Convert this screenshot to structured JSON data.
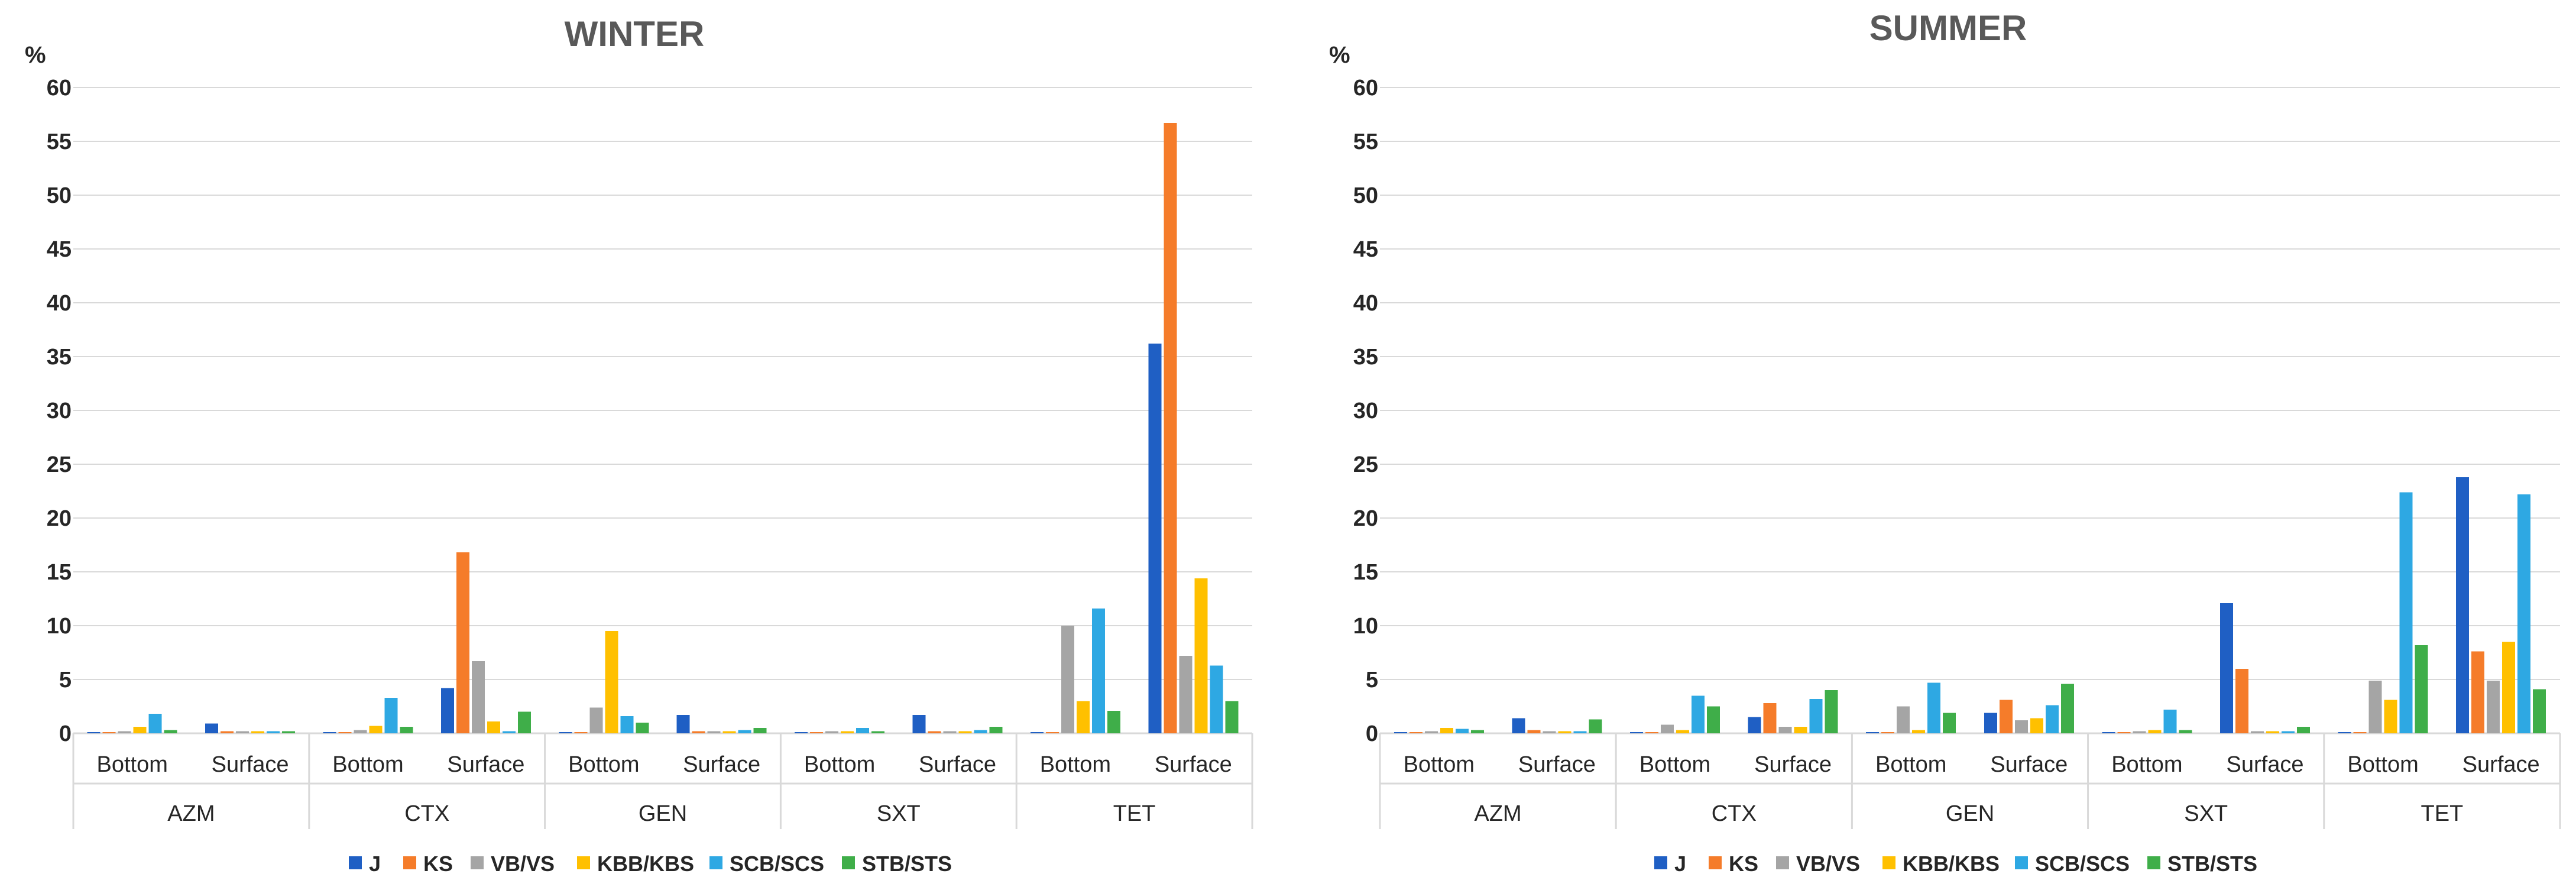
{
  "chart_data": [
    {
      "type": "bar",
      "title": "WINTER",
      "ylabel": "%",
      "ylim": [
        0,
        60
      ],
      "yticks": [
        "0",
        "5",
        "10",
        "15",
        "20",
        "25",
        "30",
        "35",
        "40",
        "45",
        "50",
        "55",
        "60"
      ],
      "groups": [
        "AZM",
        "CTX",
        "GEN",
        "SXT",
        "TET"
      ],
      "subcategories": [
        "Bottom",
        "Surface"
      ],
      "series": [
        {
          "name": "J",
          "color": "#1f5fc4",
          "values": [
            0.1,
            0.9,
            0.1,
            4.2,
            0.1,
            1.7,
            0.1,
            1.7,
            0.1,
            36.2
          ]
        },
        {
          "name": "KS",
          "color": "#f57c2a",
          "values": [
            0.1,
            0.2,
            0.1,
            16.8,
            0.1,
            0.2,
            0.1,
            0.2,
            0.1,
            56.7
          ]
        },
        {
          "name": "VB/VS",
          "color": "#a5a5a5",
          "values": [
            0.2,
            0.2,
            0.3,
            6.7,
            2.4,
            0.2,
            0.2,
            0.2,
            10.0,
            7.2
          ]
        },
        {
          "name": "KBB/KBS",
          "color": "#ffc000",
          "values": [
            0.6,
            0.2,
            0.7,
            1.1,
            9.5,
            0.2,
            0.2,
            0.2,
            3.0,
            14.4
          ]
        },
        {
          "name": "SCB/SCS",
          "color": "#2ea8e3",
          "values": [
            1.8,
            0.2,
            3.3,
            0.2,
            1.6,
            0.3,
            0.5,
            0.3,
            11.6,
            6.3
          ]
        },
        {
          "name": "STB/STS",
          "color": "#3fae49",
          "values": [
            0.3,
            0.2,
            0.6,
            2.0,
            1.0,
            0.5,
            0.2,
            0.6,
            2.1,
            3.0
          ]
        }
      ]
    },
    {
      "type": "bar",
      "title": "SUMMER",
      "ylabel": "%",
      "ylim": [
        0,
        60
      ],
      "yticks": [
        "0",
        "5",
        "10",
        "15",
        "20",
        "25",
        "30",
        "35",
        "40",
        "45",
        "50",
        "55",
        "60"
      ],
      "groups": [
        "AZM",
        "CTX",
        "GEN",
        "SXT",
        "TET"
      ],
      "subcategories": [
        "Bottom",
        "Surface"
      ],
      "series": [
        {
          "name": "J",
          "color": "#1f5fc4",
          "values": [
            0.1,
            1.4,
            0.1,
            1.5,
            0.1,
            1.9,
            0.1,
            12.1,
            0.1,
            23.8
          ]
        },
        {
          "name": "KS",
          "color": "#f57c2a",
          "values": [
            0.1,
            0.3,
            0.1,
            2.8,
            0.1,
            3.1,
            0.1,
            6.0,
            0.1,
            7.6
          ]
        },
        {
          "name": "VB/VS",
          "color": "#a5a5a5",
          "values": [
            0.2,
            0.2,
            0.8,
            0.6,
            2.5,
            1.2,
            0.2,
            0.2,
            4.9,
            4.9
          ]
        },
        {
          "name": "KBB/KBS",
          "color": "#ffc000",
          "values": [
            0.5,
            0.2,
            0.3,
            0.6,
            0.3,
            1.4,
            0.3,
            0.2,
            3.1,
            8.5
          ]
        },
        {
          "name": "SCB/SCS",
          "color": "#2ea8e3",
          "values": [
            0.4,
            0.2,
            3.5,
            3.2,
            4.7,
            2.6,
            2.2,
            0.2,
            22.4,
            22.2
          ]
        },
        {
          "name": "STB/STS",
          "color": "#3fae49",
          "values": [
            0.3,
            1.3,
            2.5,
            4.0,
            1.9,
            4.6,
            0.3,
            0.6,
            8.2,
            4.1
          ]
        }
      ]
    }
  ]
}
